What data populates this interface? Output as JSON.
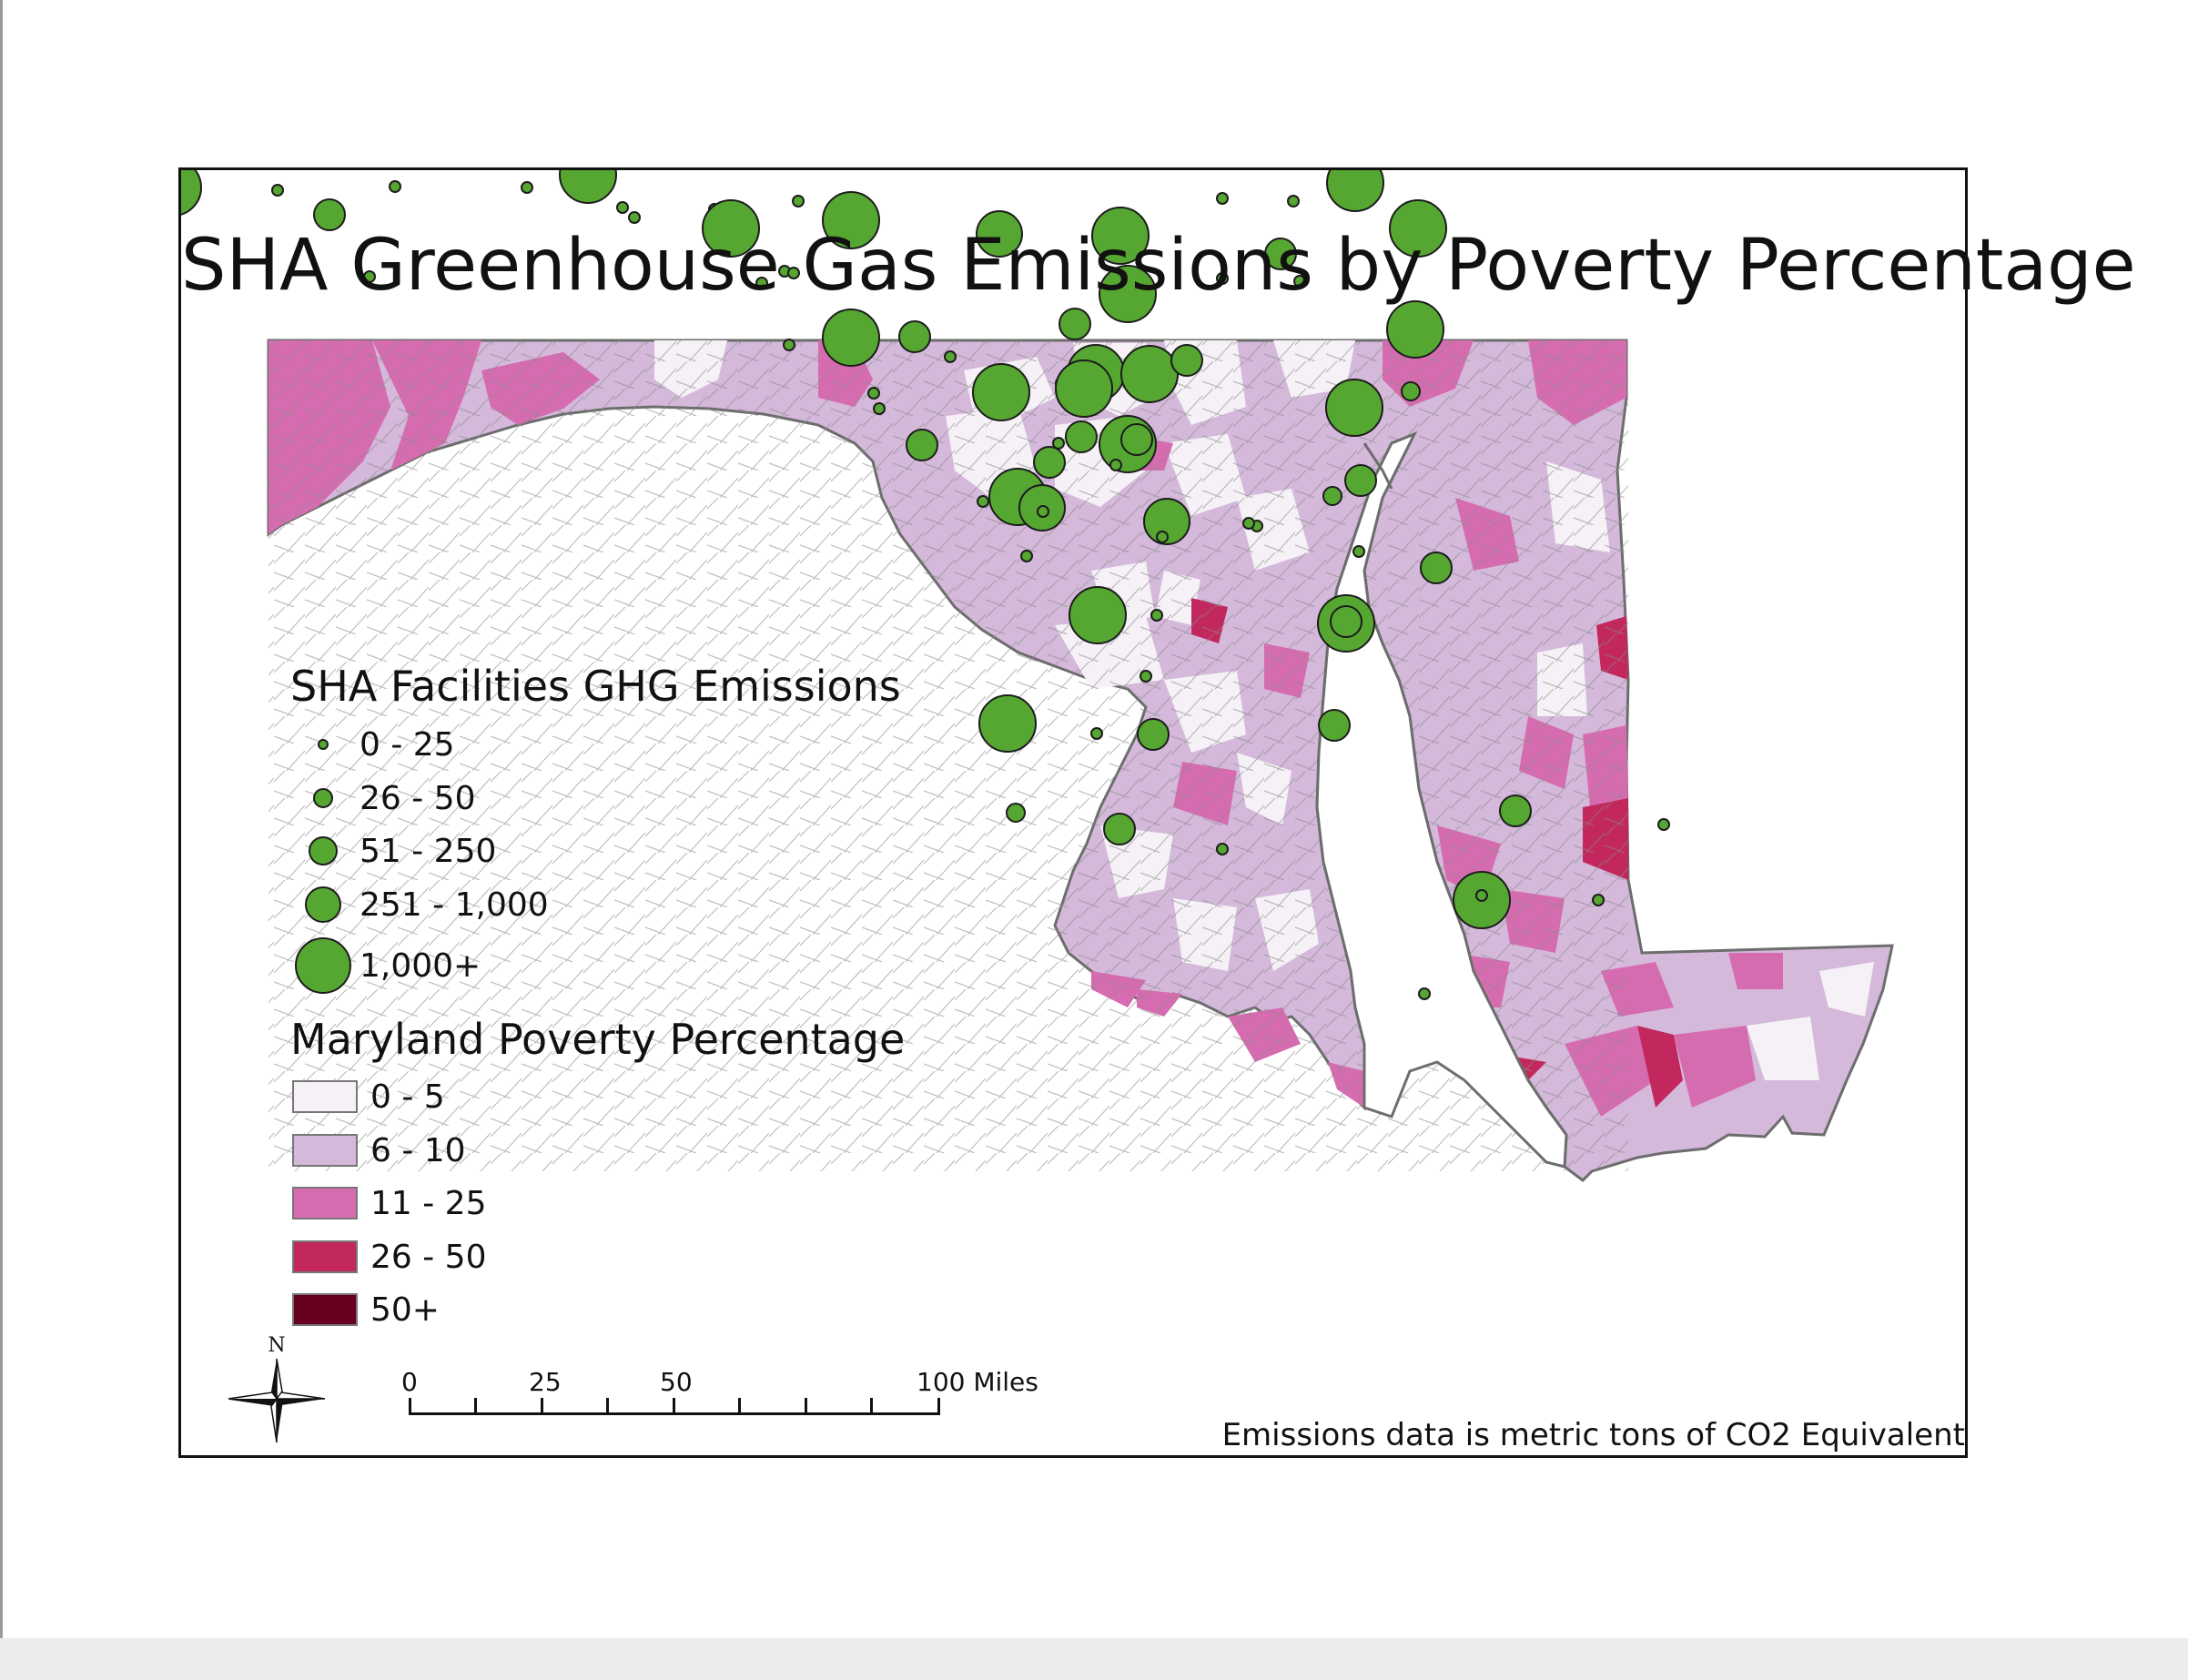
{
  "map": {
    "title": "SHA Greenhouse Gas Emissions by Poverty Percentage",
    "footnote": "Emissions data is metric tons of CO2 Equivalent",
    "north_label": "N",
    "scale_bar": {
      "labels": [
        "0",
        "25",
        "50",
        "100 Miles"
      ]
    }
  },
  "legend_emissions": {
    "title": "SHA Facilities GHG Emissions",
    "items": [
      {
        "label": "0 - 25"
      },
      {
        "label": "26 - 50"
      },
      {
        "label": "51 - 250"
      },
      {
        "label": "251 - 1,000"
      },
      {
        "label": "1,000+"
      }
    ],
    "symbol_color": "#56a632"
  },
  "legend_poverty": {
    "title": "Maryland Poverty Percentage",
    "items": [
      {
        "label": "0 - 5",
        "color": "#f5f1f6"
      },
      {
        "label": "6 - 10",
        "color": "#d4b9da"
      },
      {
        "label": "11 - 25",
        "color": "#d66cb0"
      },
      {
        "label": "26 - 50",
        "color": "#c2285d"
      },
      {
        "label": "50+",
        "color": "#67001f"
      }
    ]
  }
}
